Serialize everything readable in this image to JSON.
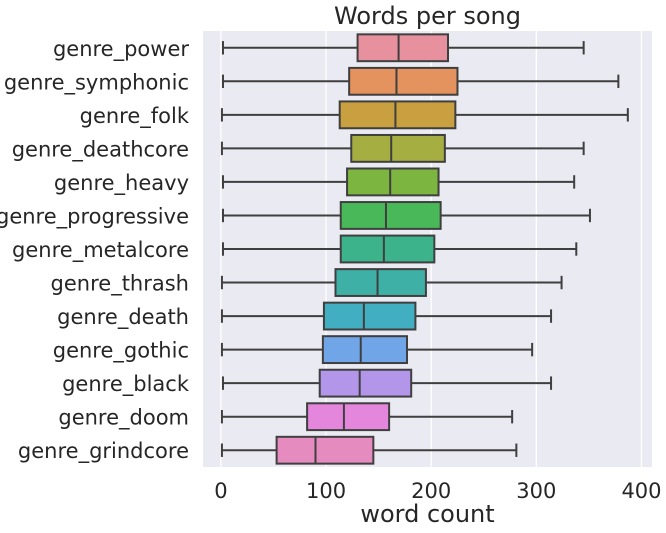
{
  "chart_data": {
    "type": "boxplot",
    "orientation": "horizontal",
    "title": "Words per song",
    "xlabel": "word count",
    "ylabel": "",
    "xlim": [
      -17,
      410
    ],
    "xticks": [
      0,
      100,
      200,
      300,
      400
    ],
    "grid": true,
    "background": "#EAEAF2",
    "categories": [
      "genre_power",
      "genre_symphonic",
      "genre_folk",
      "genre_deathcore",
      "genre_heavy",
      "genre_progressive",
      "genre_metalcore",
      "genre_thrash",
      "genre_death",
      "genre_gothic",
      "genre_black",
      "genre_doom",
      "genre_grindcore"
    ],
    "series": [
      {
        "category": "genre_power",
        "min": 2,
        "q1": 130,
        "median": 169,
        "q3": 216,
        "max": 345,
        "color": "#E8919E"
      },
      {
        "category": "genre_symphonic",
        "min": 2,
        "q1": 122,
        "median": 167,
        "q3": 225,
        "max": 378,
        "color": "#E4925E"
      },
      {
        "category": "genre_folk",
        "min": 1,
        "q1": 113,
        "median": 166,
        "q3": 223,
        "max": 387,
        "color": "#C9A040"
      },
      {
        "category": "genre_deathcore",
        "min": 1,
        "q1": 124,
        "median": 162,
        "q3": 213,
        "max": 345,
        "color": "#A5AE40"
      },
      {
        "category": "genre_heavy",
        "min": 2,
        "q1": 120,
        "median": 161,
        "q3": 207,
        "max": 336,
        "color": "#7CB540"
      },
      {
        "category": "genre_progressive",
        "min": 2,
        "q1": 114,
        "median": 157,
        "q3": 209,
        "max": 351,
        "color": "#49B858"
      },
      {
        "category": "genre_metalcore",
        "min": 2,
        "q1": 114,
        "median": 155,
        "q3": 203,
        "max": 338,
        "color": "#3DB38C"
      },
      {
        "category": "genre_thrash",
        "min": 1,
        "q1": 109,
        "median": 149,
        "q3": 195,
        "max": 324,
        "color": "#3EB0A6"
      },
      {
        "category": "genre_death",
        "min": 1,
        "q1": 98,
        "median": 136,
        "q3": 185,
        "max": 314,
        "color": "#41AEC2"
      },
      {
        "category": "genre_gothic",
        "min": 1,
        "q1": 97,
        "median": 133,
        "q3": 177,
        "max": 296,
        "color": "#70A5E8"
      },
      {
        "category": "genre_black",
        "min": 2,
        "q1": 94,
        "median": 132,
        "q3": 181,
        "max": 314,
        "color": "#B395EA"
      },
      {
        "category": "genre_doom",
        "min": 1,
        "q1": 82,
        "median": 117,
        "q3": 160,
        "max": 277,
        "color": "#E486DC"
      },
      {
        "category": "genre_grindcore",
        "min": 1,
        "q1": 53,
        "median": 90,
        "q3": 145,
        "max": 281,
        "color": "#E68BBF"
      }
    ]
  }
}
